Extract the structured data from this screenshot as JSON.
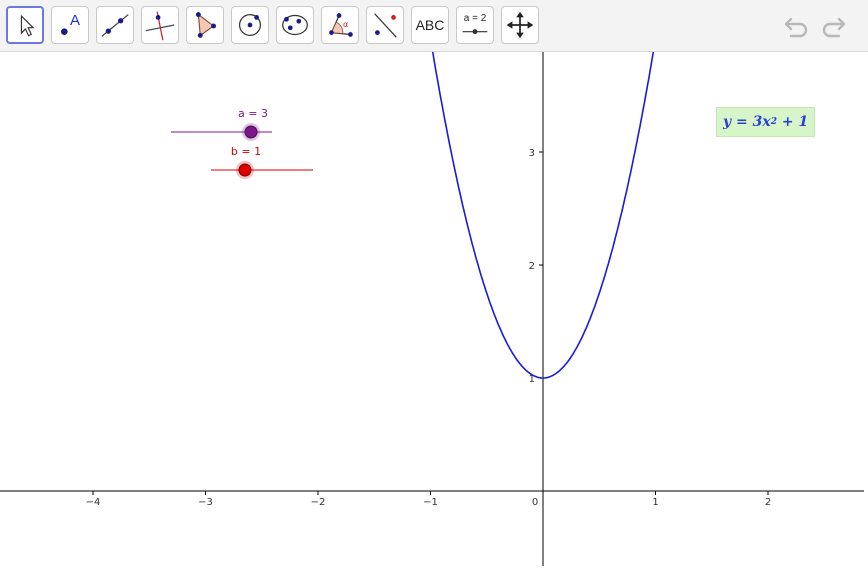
{
  "toolbar": {
    "tools": [
      {
        "name": "move-tool",
        "selected": true
      },
      {
        "name": "point-tool",
        "label": "A"
      },
      {
        "name": "line-tool"
      },
      {
        "name": "perpendicular-line-tool"
      },
      {
        "name": "polygon-tool"
      },
      {
        "name": "circle-tool"
      },
      {
        "name": "conic-tool"
      },
      {
        "name": "angle-tool",
        "label": "α"
      },
      {
        "name": "reflect-tool"
      },
      {
        "name": "text-tool",
        "label": "ABC"
      },
      {
        "name": "slider-tool",
        "label": "a = 2"
      },
      {
        "name": "move-graphics-view-tool"
      }
    ]
  },
  "history": {
    "undo_icon": "undo-icon",
    "redo_icon": "redo-icon"
  },
  "axes": {
    "x_ticks": [
      "−4",
      "−3",
      "−2",
      "−1",
      "0",
      "1",
      "2"
    ],
    "y_ticks": [
      "1",
      "2",
      "3"
    ]
  },
  "sliders": [
    {
      "name": "a",
      "label": "a = 3",
      "value": 3,
      "color": "#7b1a86"
    },
    {
      "name": "b",
      "label": "b = 1",
      "value": 1,
      "color": "#d40000"
    }
  ],
  "function": {
    "a": 3,
    "b": 1,
    "color": "#1a1adb"
  },
  "equation": {
    "y": "y",
    "equals": " = 3",
    "x": "x",
    "exp": "2",
    "tail": " + 1"
  }
}
